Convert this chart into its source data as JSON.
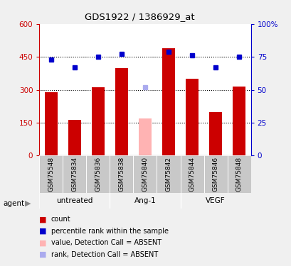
{
  "title": "GDS1922 / 1386929_at",
  "samples": [
    "GSM75548",
    "GSM75834",
    "GSM75836",
    "GSM75838",
    "GSM75840",
    "GSM75842",
    "GSM75844",
    "GSM75846",
    "GSM75848"
  ],
  "bar_values": [
    290,
    163,
    310,
    400,
    170,
    490,
    350,
    200,
    315
  ],
  "bar_colors": [
    "#cc0000",
    "#cc0000",
    "#cc0000",
    "#cc0000",
    "#ffb3b3",
    "#cc0000",
    "#cc0000",
    "#cc0000",
    "#cc0000"
  ],
  "dot_values": [
    73,
    67,
    75,
    77,
    52,
    79,
    76,
    67,
    75
  ],
  "dot_colors": [
    "#0000cc",
    "#0000cc",
    "#0000cc",
    "#0000cc",
    "#aaaaee",
    "#0000cc",
    "#0000cc",
    "#0000cc",
    "#0000cc"
  ],
  "groups": [
    {
      "label": "untreated",
      "start": 0,
      "end": 3
    },
    {
      "label": "Ang-1",
      "start": 3,
      "end": 6
    },
    {
      "label": "VEGF",
      "start": 6,
      "end": 9
    }
  ],
  "group_color": "#90ee90",
  "ylim_left": [
    0,
    600
  ],
  "ylim_right": [
    0,
    100
  ],
  "yticks_left": [
    0,
    150,
    300,
    450,
    600
  ],
  "ytick_labels_left": [
    "0",
    "150",
    "300",
    "450",
    "600"
  ],
  "ytick_labels_right": [
    "0",
    "25",
    "50",
    "75",
    "100%"
  ],
  "left_tick_color": "#cc0000",
  "right_tick_color": "#0000cc",
  "background_color": "#f0f0f0",
  "plot_bg_color": "#ffffff",
  "bar_width": 0.55,
  "legend_items": [
    {
      "label": "count",
      "color": "#cc0000"
    },
    {
      "label": "percentile rank within the sample",
      "color": "#0000cc"
    },
    {
      "label": "value, Detection Call = ABSENT",
      "color": "#ffb3b3"
    },
    {
      "label": "rank, Detection Call = ABSENT",
      "color": "#aaaaee"
    }
  ],
  "sample_box_color": "#c8c8c8",
  "gridline_color": "#000000",
  "hgrid_values": [
    150,
    300,
    450
  ]
}
